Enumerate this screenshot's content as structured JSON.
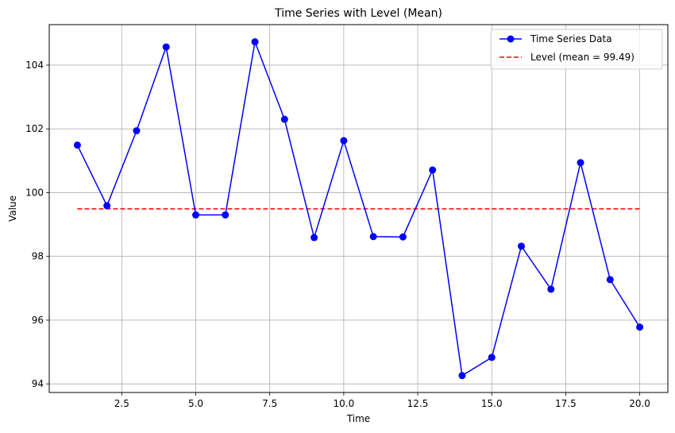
{
  "chart_data": {
    "type": "line",
    "title": "Time Series with Level (Mean)",
    "xlabel": "Time",
    "ylabel": "Value",
    "xlim": [
      0.05,
      20.95
    ],
    "ylim": [
      93.73,
      105.27
    ],
    "xticks": [
      2.5,
      5.0,
      7.5,
      10.0,
      12.5,
      15.0,
      17.5,
      20.0
    ],
    "xtick_labels": [
      "2.5",
      "5.0",
      "7.5",
      "10.0",
      "12.5",
      "15.0",
      "17.5",
      "20.0"
    ],
    "yticks": [
      94,
      96,
      98,
      100,
      102,
      104
    ],
    "ytick_labels": [
      "94",
      "96",
      "98",
      "100",
      "102",
      "104"
    ],
    "grid": true,
    "legend_position": "top-right",
    "series": [
      {
        "name": "Time Series Data",
        "style": "solid line with circle markers",
        "color": "#0000ff",
        "x": [
          1,
          2,
          3,
          4,
          5,
          6,
          7,
          8,
          9,
          10,
          11,
          12,
          13,
          14,
          15,
          16,
          17,
          18,
          19,
          20
        ],
        "y": [
          101.49,
          99.59,
          101.94,
          104.57,
          99.3,
          99.3,
          104.73,
          102.3,
          98.59,
          101.63,
          98.62,
          98.61,
          100.71,
          94.26,
          94.83,
          98.32,
          96.97,
          100.94,
          97.27,
          95.78
        ]
      },
      {
        "name": "Level (mean = 99.49)",
        "style": "dashed line",
        "color": "#ff0000",
        "x": [
          1,
          20
        ],
        "y": [
          99.49,
          99.49
        ]
      }
    ]
  }
}
